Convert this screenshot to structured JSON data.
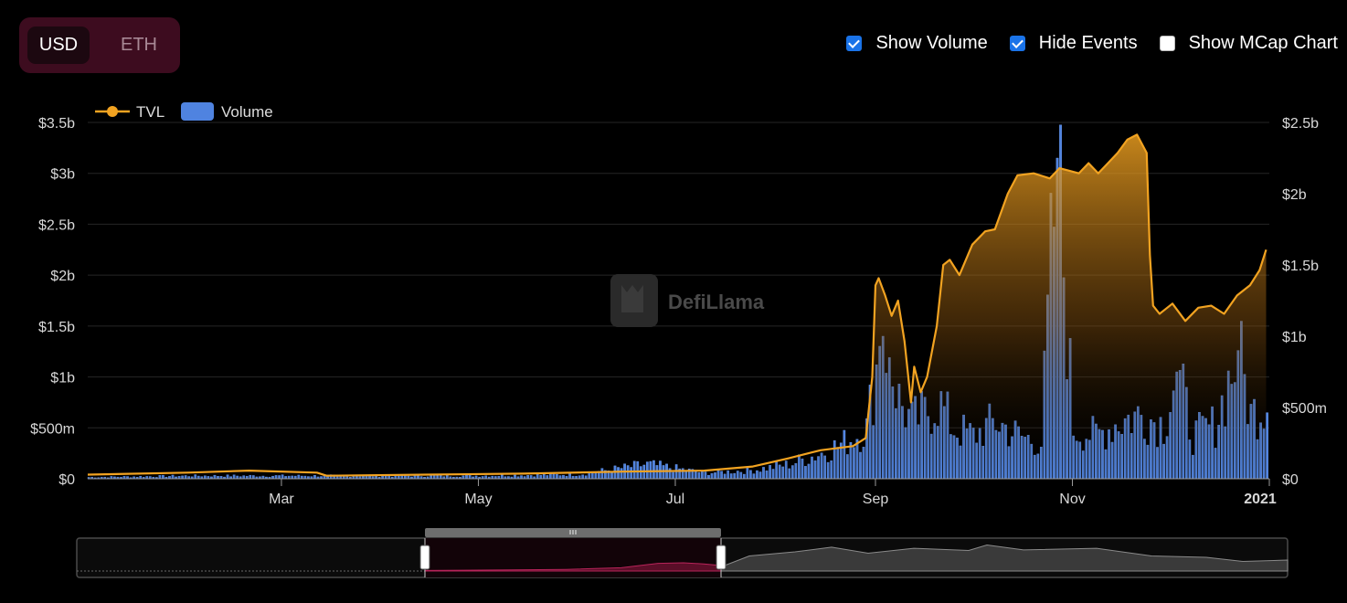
{
  "currency": {
    "options": [
      "USD",
      "ETH"
    ],
    "selected": "USD"
  },
  "toggles": [
    {
      "label": "Show Volume",
      "checked": true
    },
    {
      "label": "Hide Events",
      "checked": true
    },
    {
      "label": "Show MCap Chart",
      "checked": false
    }
  ],
  "watermark": "DefiLlama",
  "colors": {
    "tvl": "#f2a321",
    "volume": "#4f83e0",
    "accent": "#3d0c1f",
    "checkbox": "#1a73e8"
  },
  "chart_data": {
    "type": "line",
    "legend": [
      "TVL",
      "Volume"
    ],
    "legend_position": "top-left",
    "grid": true,
    "x_axis": {
      "ticks": [
        "Mar",
        "May",
        "Jul",
        "Sep",
        "Nov",
        "2021"
      ],
      "range": [
        "2020-01-01",
        "2021-01-01"
      ]
    },
    "y_left": {
      "label": "TVL",
      "ticks": [
        "$0",
        "$500m",
        "$1b",
        "$1.5b",
        "$2b",
        "$2.5b",
        "$3b",
        "$3.5b"
      ],
      "range": [
        0,
        3.5
      ],
      "unit": "billion USD"
    },
    "y_right": {
      "label": "Volume",
      "ticks": [
        "$0",
        "$500m",
        "$1b",
        "$1.5b",
        "$2b",
        "$2.5b"
      ],
      "range": [
        0,
        2.5
      ],
      "unit": "billion USD"
    },
    "series": [
      {
        "name": "TVL",
        "axis": "left",
        "points": [
          [
            "2020-01-01",
            0.04
          ],
          [
            "2020-02-01",
            0.06
          ],
          [
            "2020-02-20",
            0.08
          ],
          [
            "2020-03-12",
            0.06
          ],
          [
            "2020-03-15",
            0.03
          ],
          [
            "2020-04-15",
            0.04
          ],
          [
            "2020-05-15",
            0.05
          ],
          [
            "2020-06-15",
            0.07
          ],
          [
            "2020-07-10",
            0.08
          ],
          [
            "2020-07-25",
            0.12
          ],
          [
            "2020-08-05",
            0.2
          ],
          [
            "2020-08-15",
            0.28
          ],
          [
            "2020-08-25",
            0.32
          ],
          [
            "2020-08-29",
            0.4
          ],
          [
            "2020-08-31",
            1.0
          ],
          [
            "2020-09-01",
            1.9
          ],
          [
            "2020-09-02",
            1.97
          ],
          [
            "2020-09-04",
            1.8
          ],
          [
            "2020-09-06",
            1.6
          ],
          [
            "2020-09-08",
            1.75
          ],
          [
            "2020-09-10",
            1.35
          ],
          [
            "2020-09-12",
            0.75
          ],
          [
            "2020-09-13",
            1.1
          ],
          [
            "2020-09-15",
            0.85
          ],
          [
            "2020-09-17",
            1.0
          ],
          [
            "2020-09-20",
            1.5
          ],
          [
            "2020-09-22",
            2.1
          ],
          [
            "2020-09-24",
            2.15
          ],
          [
            "2020-09-27",
            2.0
          ],
          [
            "2020-10-01",
            2.3
          ],
          [
            "2020-10-05",
            2.43
          ],
          [
            "2020-10-08",
            2.45
          ],
          [
            "2020-10-12",
            2.8
          ],
          [
            "2020-10-15",
            2.98
          ],
          [
            "2020-10-20",
            3.0
          ],
          [
            "2020-10-25",
            2.95
          ],
          [
            "2020-10-28",
            3.05
          ],
          [
            "2020-11-03",
            3.0
          ],
          [
            "2020-11-06",
            3.1
          ],
          [
            "2020-11-09",
            3.0
          ],
          [
            "2020-11-12",
            3.1
          ],
          [
            "2020-11-15",
            3.2
          ],
          [
            "2020-11-18",
            3.33
          ],
          [
            "2020-11-21",
            3.38
          ],
          [
            "2020-11-24",
            3.2
          ],
          [
            "2020-11-25",
            2.2
          ],
          [
            "2020-11-26",
            1.7
          ],
          [
            "2020-11-28",
            1.62
          ],
          [
            "2020-12-02",
            1.72
          ],
          [
            "2020-12-06",
            1.55
          ],
          [
            "2020-12-10",
            1.68
          ],
          [
            "2020-12-14",
            1.7
          ],
          [
            "2020-12-18",
            1.62
          ],
          [
            "2020-12-22",
            1.8
          ],
          [
            "2020-12-26",
            1.9
          ],
          [
            "2020-12-29",
            2.05
          ],
          [
            "2020-12-31",
            2.25
          ]
        ]
      },
      {
        "name": "Volume",
        "axis": "right",
        "points": [
          [
            "2020-01-01",
            0.01
          ],
          [
            "2020-02-01",
            0.02
          ],
          [
            "2020-03-01",
            0.02
          ],
          [
            "2020-04-01",
            0.02
          ],
          [
            "2020-05-01",
            0.02
          ],
          [
            "2020-06-01",
            0.03
          ],
          [
            "2020-06-22",
            0.1
          ],
          [
            "2020-07-10",
            0.04
          ],
          [
            "2020-07-25",
            0.06
          ],
          [
            "2020-08-05",
            0.1
          ],
          [
            "2020-08-15",
            0.18
          ],
          [
            "2020-08-22",
            0.25
          ],
          [
            "2020-08-29",
            0.35
          ],
          [
            "2020-09-01",
            0.8
          ],
          [
            "2020-09-03",
            1.0
          ],
          [
            "2020-09-05",
            0.85
          ],
          [
            "2020-09-08",
            0.55
          ],
          [
            "2020-09-12",
            0.4
          ],
          [
            "2020-09-16",
            0.45
          ],
          [
            "2020-09-20",
            0.55
          ],
          [
            "2020-09-25",
            0.35
          ],
          [
            "2020-10-01",
            0.3
          ],
          [
            "2020-10-08",
            0.4
          ],
          [
            "2020-10-15",
            0.3
          ],
          [
            "2020-10-22",
            0.25
          ],
          [
            "2020-10-27",
            2.25
          ],
          [
            "2020-11-01",
            0.35
          ],
          [
            "2020-11-08",
            0.3
          ],
          [
            "2020-11-15",
            0.4
          ],
          [
            "2020-11-22",
            0.45
          ],
          [
            "2020-11-29",
            0.38
          ],
          [
            "2020-12-03",
            0.75
          ],
          [
            "2020-12-08",
            0.3
          ],
          [
            "2020-12-15",
            0.38
          ],
          [
            "2020-12-22",
            0.9
          ],
          [
            "2020-12-26",
            0.45
          ],
          [
            "2020-12-31",
            0.55
          ]
        ]
      }
    ]
  }
}
